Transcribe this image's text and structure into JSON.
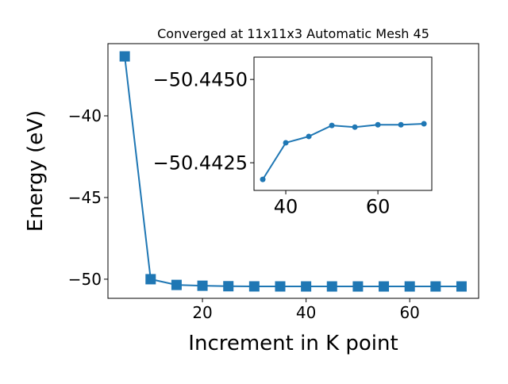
{
  "chart_data": [
    {
      "type": "line",
      "title": "Converged at 11x11x3 Automatic Mesh 45",
      "xlabel": "Increment in K point",
      "ylabel": "Energy (eV)",
      "x": [
        5,
        10,
        15,
        20,
        25,
        30,
        35,
        40,
        45,
        50,
        55,
        60,
        65,
        70
      ],
      "series": [
        {
          "color": "#1f77b4",
          "marker": "square",
          "values": [
            -36.36,
            -50.0,
            -50.35,
            -50.4,
            -50.43,
            -50.44,
            -50.442,
            -50.4431,
            -50.44329,
            -50.44362,
            -50.44357,
            -50.44364,
            -50.44364,
            -50.44367
          ]
        }
      ],
      "xlim": [
        1.76,
        73.3
      ],
      "ylim": [
        -51.17,
        -35.58
      ],
      "xticks": [
        20,
        40,
        60
      ],
      "yticks": [
        {
          "value": -50,
          "label": "−50"
        },
        {
          "value": -45,
          "label": "−45"
        },
        {
          "value": -40,
          "label": "−40"
        }
      ]
    },
    {
      "type": "line",
      "x": [
        35,
        40,
        45,
        50,
        55,
        60,
        65,
        70
      ],
      "series": [
        {
          "color": "#1f77b4",
          "marker": "circle",
          "values": [
            -50.442,
            -50.4431,
            -50.44329,
            -50.44362,
            -50.44357,
            -50.44364,
            -50.44364,
            -50.44367
          ]
        }
      ],
      "xlim": [
        33.1,
        71.7
      ],
      "ylim": [
        -50.44167,
        -50.44567
      ],
      "xticks": [
        40,
        60
      ],
      "yticks": [
        {
          "value": -50.4425,
          "label": "−50.4425"
        },
        {
          "value": -50.445,
          "label": "−50.4450"
        }
      ]
    }
  ]
}
